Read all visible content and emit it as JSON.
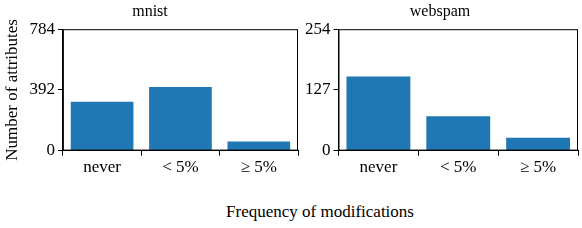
{
  "chart_data": [
    {
      "type": "bar",
      "title": "mnist",
      "categories": [
        "never",
        "< 5%",
        "≥ 5%"
      ],
      "values": [
        315,
        410,
        59
      ],
      "color": "#1f77b4",
      "ylim": [
        0,
        784
      ],
      "yticks": [
        0,
        392,
        784
      ],
      "grid": false,
      "y_label": "Number of attributes",
      "x_label": "Frequency of modifications"
    },
    {
      "type": "bar",
      "title": "webspam",
      "categories": [
        "never",
        "< 5%",
        "≥ 5%"
      ],
      "values": [
        155,
        72,
        27
      ],
      "color": "#1f77b4",
      "ylim": [
        0,
        254
      ],
      "yticks": [
        0,
        127,
        254
      ],
      "grid": false
    }
  ]
}
